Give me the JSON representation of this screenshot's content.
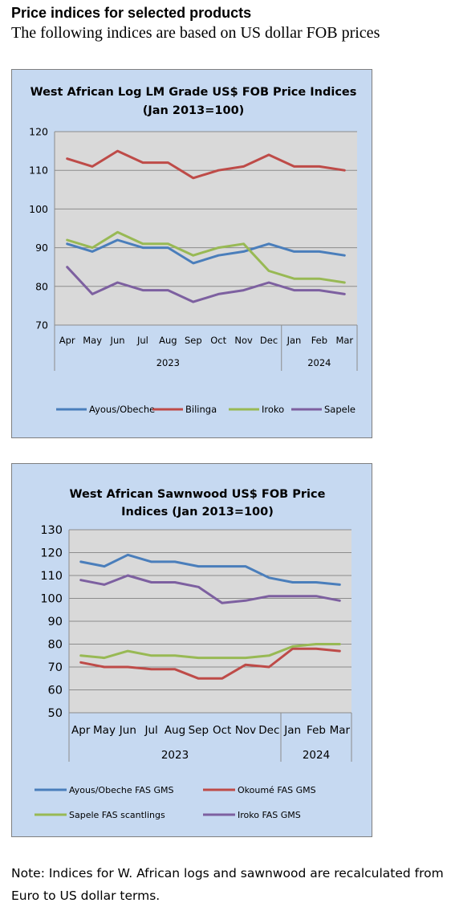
{
  "page": {
    "heading": "Price indices for selected products",
    "subheading": "The following indices are based on US dollar FOB prices",
    "note": "Note: Indices for W. African logs and sawnwood are recalculated from Euro to US dollar terms."
  },
  "colors": {
    "frame_bg": "#c6d9f1",
    "plot_bg": "#d9d9d9",
    "blue": "#4a7ebb",
    "red": "#be4b48",
    "green": "#98b954",
    "purple": "#7d60a0"
  },
  "chart_data": [
    {
      "type": "line",
      "title": "West African Log LM Grade US$ FOB Price Indices",
      "subtitle": "(Jan 2013=100)",
      "categories": [
        "Apr",
        "May",
        "Jun",
        "Jul",
        "Aug",
        "Sep",
        "Oct",
        "Nov",
        "Dec",
        "Jan",
        "Feb",
        "Mar"
      ],
      "year_groups": [
        {
          "label": "2023",
          "count": 9
        },
        {
          "label": "2024",
          "count": 3
        }
      ],
      "ylim": [
        70,
        120
      ],
      "yticks": [
        "70",
        "80",
        "90",
        "100",
        "110",
        "120"
      ],
      "grid": true,
      "legend": "bottom",
      "series": [
        {
          "name": "Ayous/Obeche",
          "color": "#4a7ebb",
          "values": [
            91,
            89,
            92,
            90,
            90,
            86,
            88,
            89,
            91,
            89,
            89,
            88
          ]
        },
        {
          "name": "Bilinga",
          "color": "#be4b48",
          "values": [
            113,
            111,
            115,
            112,
            112,
            108,
            110,
            111,
            114,
            111,
            111,
            110
          ]
        },
        {
          "name": "Iroko",
          "color": "#98b954",
          "values": [
            92,
            90,
            94,
            91,
            91,
            88,
            90,
            91,
            84,
            82,
            82,
            81
          ]
        },
        {
          "name": "Sapele",
          "color": "#7d60a0",
          "values": [
            85,
            78,
            81,
            79,
            79,
            76,
            78,
            79,
            81,
            79,
            79,
            78
          ]
        }
      ]
    },
    {
      "type": "line",
      "title": "West African Sawnwood US$ FOB Price",
      "subtitle": "Indices (Jan 2013=100)",
      "categories": [
        "Apr",
        "May",
        "Jun",
        "Jul",
        "Aug",
        "Sep",
        "Oct",
        "Nov",
        "Dec",
        "Jan",
        "Feb",
        "Mar"
      ],
      "year_groups": [
        {
          "label": "2023",
          "count": 9
        },
        {
          "label": "2024",
          "count": 3
        }
      ],
      "ylim": [
        50,
        130
      ],
      "yticks": [
        "50",
        "60",
        "70",
        "80",
        "90",
        "100",
        "110",
        "120",
        "130"
      ],
      "grid": true,
      "legend": "bottom",
      "series": [
        {
          "name": "Ayous/Obeche  FAS GMS",
          "color": "#4a7ebb",
          "values": [
            116,
            114,
            119,
            116,
            116,
            114,
            114,
            114,
            109,
            107,
            107,
            106
          ]
        },
        {
          "name": "Okoumé  FAS GMS",
          "color": "#be4b48",
          "values": [
            72,
            70,
            70,
            69,
            69,
            65,
            65,
            71,
            70,
            78,
            78,
            77
          ]
        },
        {
          "name": "Sapele  FAS scantlings",
          "color": "#98b954",
          "values": [
            75,
            74,
            77,
            75,
            75,
            74,
            74,
            74,
            75,
            79,
            80,
            80
          ]
        },
        {
          "name": "Iroko FAS GMS",
          "color": "#7d60a0",
          "values": [
            108,
            106,
            110,
            107,
            107,
            105,
            98,
            99,
            101,
            101,
            101,
            99
          ]
        }
      ]
    }
  ]
}
